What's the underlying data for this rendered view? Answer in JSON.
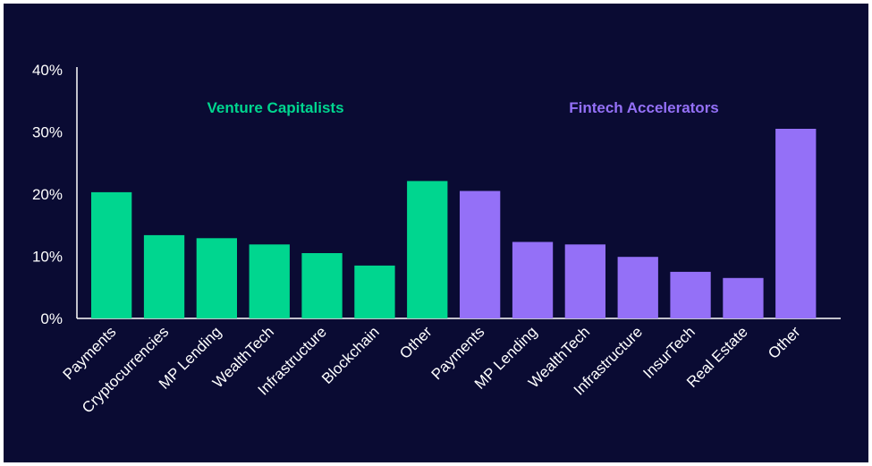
{
  "chart_data": {
    "type": "bar",
    "ylim": [
      0,
      40
    ],
    "yticks": [
      "0%",
      "10%",
      "20%",
      "30%",
      "40%"
    ],
    "ytick_values": [
      0,
      10,
      20,
      30,
      40
    ],
    "grid": false,
    "groups": [
      {
        "name": "Venture Capitalists",
        "color": "#00d68f",
        "categories": [
          "Payments",
          "Cryptocurrencies",
          "MP Lending",
          "WealthTech",
          "Infrastructure",
          "Blockchain",
          "Other"
        ],
        "values": [
          20.3,
          13.4,
          12.9,
          11.9,
          10.5,
          8.5,
          22.1
        ]
      },
      {
        "name": "Fintech Accelerators",
        "color": "#9470f7",
        "categories": [
          "Payments",
          "MP Lending",
          "WealthTech",
          "Infrastructure",
          "InsurTech",
          "Real Estate",
          "Other"
        ],
        "values": [
          20.5,
          12.3,
          11.9,
          9.9,
          7.5,
          6.5,
          30.5
        ]
      }
    ]
  }
}
